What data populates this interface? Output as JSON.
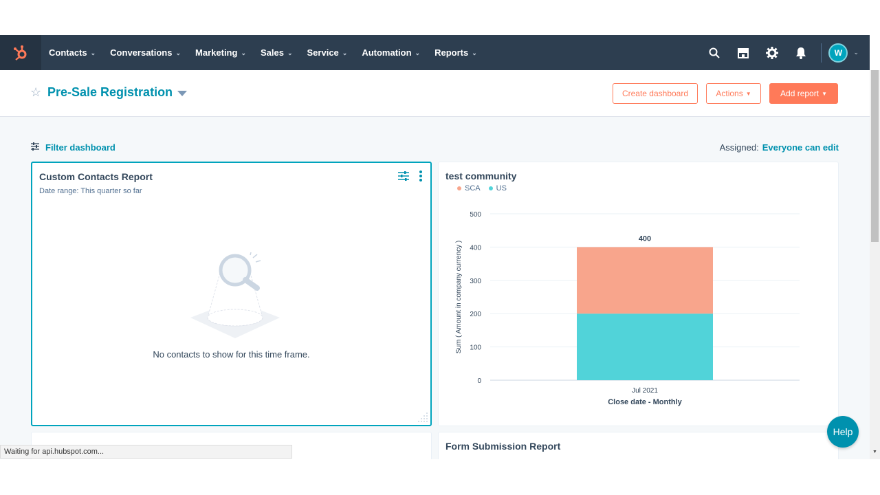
{
  "nav": {
    "items": [
      {
        "label": "Contacts"
      },
      {
        "label": "Conversations"
      },
      {
        "label": "Marketing"
      },
      {
        "label": "Sales"
      },
      {
        "label": "Service"
      },
      {
        "label": "Automation"
      },
      {
        "label": "Reports"
      }
    ],
    "avatar_initial": "W",
    "icons": [
      "search-icon",
      "marketplace-icon",
      "settings-icon",
      "notifications-icon"
    ]
  },
  "header": {
    "title": "Pre-Sale Registration",
    "create_dashboard": "Create dashboard",
    "actions": "Actions",
    "add_report": "Add report"
  },
  "filter": {
    "label": "Filter dashboard",
    "assigned_label": "Assigned:",
    "assigned_value": "Everyone can edit"
  },
  "cards": {
    "contacts": {
      "title": "Custom Contacts Report",
      "subtitle": "Date range:  This quarter so far",
      "empty": "No contacts to show for this time frame."
    },
    "community": {
      "title": "test community"
    },
    "form": {
      "title": "Form Submission Report"
    }
  },
  "chart_data": {
    "type": "bar",
    "stacked": true,
    "categories": [
      "Jul 2021"
    ],
    "series": [
      {
        "name": "US",
        "values": [
          200
        ],
        "color": "#51d3d9"
      },
      {
        "name": "SCA",
        "values": [
          200
        ],
        "color": "#f8a58c"
      }
    ],
    "totals": [
      "400"
    ],
    "xlabel": "Close date - Monthly",
    "ylabel": "Sum ( Amount in company currency )",
    "ylim": [
      0,
      500
    ],
    "yticks": [
      "0",
      "100",
      "200",
      "300",
      "400",
      "500"
    ],
    "legend": "top-left"
  },
  "help": "Help",
  "status": "Waiting for api.hubspot.com..."
}
